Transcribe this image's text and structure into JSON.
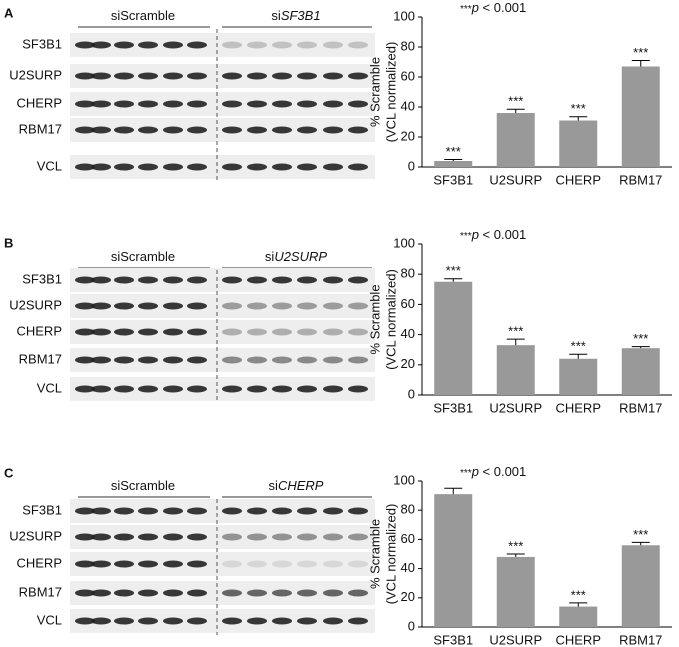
{
  "panels": [
    {
      "letter": "A",
      "groups": [
        {
          "prefix": "si",
          "name": "Scramble"
        },
        {
          "prefix": "si",
          "name": "SF3B1"
        }
      ],
      "proteins": [
        "SF3B1",
        "U2SURP",
        "CHERP",
        "RBM17",
        "VCL"
      ]
    },
    {
      "letter": "B",
      "groups": [
        {
          "prefix": "si",
          "name": "Scramble"
        },
        {
          "prefix": "si",
          "name": "U2SURP"
        }
      ],
      "proteins": [
        "SF3B1",
        "U2SURP",
        "CHERP",
        "RBM17",
        "VCL"
      ]
    },
    {
      "letter": "C",
      "groups": [
        {
          "prefix": "si",
          "name": "Scramble"
        },
        {
          "prefix": "si",
          "name": "CHERP"
        }
      ],
      "proteins": [
        "SF3B1",
        "U2SURP",
        "CHERP",
        "RBM17",
        "VCL"
      ]
    }
  ],
  "chart_data": [
    {
      "type": "bar",
      "annotation": [
        "***",
        "p",
        " < 0.001"
      ],
      "y_label": [
        "% Scramble",
        "(VCL normalized)"
      ],
      "categories": [
        "SF3B1",
        "U2SURP",
        "CHERP",
        "RBM17"
      ],
      "values": [
        4,
        36,
        31,
        67
      ],
      "errors": [
        1,
        2.5,
        2.5,
        4
      ],
      "significance": [
        "***",
        "***",
        "***",
        "***"
      ],
      "color": "#999999",
      "ylim": [
        0,
        100
      ],
      "yticks": [
        0,
        20,
        40,
        60,
        80,
        100
      ]
    },
    {
      "type": "bar",
      "annotation": [
        "***",
        "p",
        " < 0.001"
      ],
      "y_label": [
        "% Scramble",
        "(VCL normalized)"
      ],
      "categories": [
        "SF3B1",
        "U2SURP",
        "CHERP",
        "RBM17"
      ],
      "values": [
        75,
        33,
        24,
        31
      ],
      "errors": [
        2,
        4,
        3,
        1
      ],
      "significance": [
        "***",
        "***",
        "***",
        "***"
      ],
      "color": "#999999",
      "ylim": [
        0,
        100
      ],
      "yticks": [
        0,
        20,
        40,
        60,
        80,
        100
      ]
    },
    {
      "type": "bar",
      "annotation": [
        "***",
        "p",
        " < 0.001"
      ],
      "y_label": [
        "% Scramble",
        "(VCL normalized)"
      ],
      "categories": [
        "SF3B1",
        "U2SURP",
        "CHERP",
        "RBM17"
      ],
      "values": [
        91,
        48,
        14,
        56
      ],
      "errors": [
        4,
        2,
        2.5,
        2
      ],
      "significance": [
        null,
        "***",
        "***",
        "***"
      ],
      "color": "#999999",
      "ylim": [
        0,
        100
      ],
      "yticks": [
        0,
        20,
        40,
        60,
        80,
        100
      ]
    }
  ]
}
